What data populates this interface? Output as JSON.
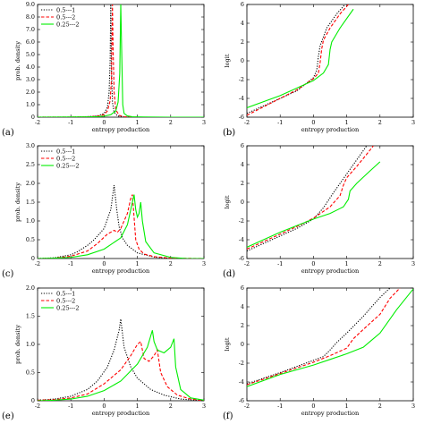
{
  "colors": {
    "black_series": "#000000",
    "red_series": "#ff0000",
    "green_series": "#00ee00"
  },
  "chart_data": [
    {
      "panel": "(a)",
      "type": "line",
      "xlabel": "entropy production",
      "ylabel": "prob. density",
      "xlim": [
        -2,
        3
      ],
      "ylim": [
        0,
        9.0
      ],
      "xticks": [
        "-2",
        "-1",
        "0",
        "1",
        "2",
        "3"
      ],
      "yticks": [
        "0",
        "1.0",
        "2.0",
        "3.0",
        "4.0",
        "5.0",
        "6.0",
        "7.0",
        "8.0",
        "9.0"
      ],
      "legend": true,
      "series": [
        {
          "name": "0.5---1",
          "style": "dotted",
          "x": [
            -2,
            -1,
            -0.5,
            -0.2,
            0,
            0.1,
            0.15,
            0.18,
            0.2,
            0.22,
            0.25,
            0.3,
            0.4,
            0.6,
            1,
            2,
            3
          ],
          "y": [
            0,
            0.01,
            0.04,
            0.1,
            0.3,
            0.8,
            2.0,
            4.5,
            9.0,
            4.0,
            1.2,
            0.4,
            0.1,
            0.02,
            0,
            0,
            0
          ]
        },
        {
          "name": "0.5---2",
          "style": "dashed",
          "x": [
            -2,
            -1,
            -0.5,
            -0.2,
            0,
            0.1,
            0.18,
            0.22,
            0.25,
            0.27,
            0.3,
            0.35,
            0.45,
            0.6,
            1,
            2,
            3
          ],
          "y": [
            0,
            0.01,
            0.03,
            0.08,
            0.2,
            0.5,
            1.3,
            3.0,
            9.0,
            5.5,
            2.0,
            0.6,
            0.15,
            0.03,
            0,
            0,
            0
          ]
        },
        {
          "name": "0.25---2",
          "style": "solid",
          "x": [
            -2,
            -1,
            -0.5,
            -0.2,
            0,
            0.2,
            0.35,
            0.42,
            0.47,
            0.5,
            0.53,
            0.56,
            0.6,
            0.7,
            0.85,
            1.2,
            2,
            3
          ],
          "y": [
            0,
            0.01,
            0.02,
            0.04,
            0.08,
            0.2,
            0.5,
            1.2,
            3.5,
            9.0,
            5.0,
            1.0,
            0.3,
            0.1,
            0.03,
            0.01,
            0,
            0
          ]
        }
      ]
    },
    {
      "panel": "(b)",
      "type": "line",
      "xlabel": "entropy production",
      "ylabel": "logit",
      "xlim": [
        -2,
        3
      ],
      "ylim": [
        -6,
        6
      ],
      "xticks": [
        "-2",
        "-1",
        "0",
        "1",
        "2",
        "3"
      ],
      "yticks": [
        "-6",
        "-4",
        "-2",
        "0",
        "2",
        "4",
        "6"
      ],
      "legend": false,
      "series": [
        {
          "name": "0.5---1",
          "style": "dotted",
          "x": [
            -2,
            -1,
            -0.5,
            0,
            0.1,
            0.15,
            0.2,
            0.4,
            0.7,
            0.95
          ],
          "y": [
            -5.6,
            -4.0,
            -3.2,
            -1.8,
            -1.0,
            0.5,
            1.6,
            3.5,
            5.0,
            6.0
          ]
        },
        {
          "name": "0.5---2",
          "style": "dashed",
          "x": [
            -2,
            -1,
            -0.5,
            0,
            0.15,
            0.2,
            0.25,
            0.3,
            0.5,
            0.8,
            1.05
          ],
          "y": [
            -5.8,
            -4.0,
            -3.1,
            -1.9,
            -1.3,
            -0.2,
            1.3,
            2.2,
            3.5,
            5.0,
            6.0
          ]
        },
        {
          "name": "0.25---2",
          "style": "solid",
          "x": [
            -2,
            -1,
            -0.5,
            0,
            0.3,
            0.45,
            0.5,
            0.55,
            0.8,
            1.2
          ],
          "y": [
            -5.0,
            -3.7,
            -2.9,
            -2.1,
            -1.3,
            -0.4,
            1.2,
            2.0,
            3.5,
            5.5
          ]
        }
      ]
    },
    {
      "panel": "(c)",
      "type": "line",
      "xlabel": "entropy production",
      "ylabel": "prob. density",
      "xlim": [
        -2,
        3
      ],
      "ylim": [
        0,
        3.0
      ],
      "xticks": [
        "-2",
        "-1",
        "0",
        "1",
        "2",
        "3"
      ],
      "yticks": [
        "0",
        "0.5",
        "1.0",
        "1.5",
        "2.0",
        "2.5",
        "3.0"
      ],
      "legend": true,
      "series": [
        {
          "name": "0.5---1",
          "style": "dotted",
          "x": [
            -2,
            -1.5,
            -1,
            -0.8,
            -0.5,
            -0.3,
            0,
            0.2,
            0.3,
            0.38,
            0.45,
            0.55,
            0.7,
            1,
            1.5,
            2,
            3
          ],
          "y": [
            0,
            0.02,
            0.1,
            0.18,
            0.35,
            0.5,
            0.8,
            1.3,
            1.95,
            1.3,
            0.85,
            0.55,
            0.35,
            0.15,
            0.04,
            0,
            0
          ]
        },
        {
          "name": "0.5---2",
          "style": "dashed",
          "x": [
            -2,
            -1.5,
            -1,
            -0.5,
            -0.2,
            0.1,
            0.3,
            0.4,
            0.5,
            0.7,
            0.8,
            0.85,
            0.9,
            0.95,
            1.05,
            1.2,
            1.5,
            2,
            3
          ],
          "y": [
            0,
            0.01,
            0.06,
            0.2,
            0.4,
            0.65,
            0.75,
            0.7,
            0.8,
            1.2,
            1.6,
            1.7,
            1.1,
            0.5,
            0.25,
            0.12,
            0.05,
            0.01,
            0
          ]
        },
        {
          "name": "0.25---2",
          "style": "solid",
          "x": [
            -2,
            -1.5,
            -1,
            -0.5,
            0,
            0.5,
            0.7,
            0.85,
            0.9,
            0.95,
            1.0,
            1.05,
            1.1,
            1.15,
            1.25,
            1.5,
            2,
            2.5,
            3
          ],
          "y": [
            0,
            0.01,
            0.03,
            0.1,
            0.25,
            0.55,
            0.9,
            1.5,
            1.7,
            1.3,
            1.1,
            1.2,
            1.5,
            1.0,
            0.45,
            0.15,
            0.03,
            0,
            0
          ]
        }
      ]
    },
    {
      "panel": "(d)",
      "type": "line",
      "xlabel": "entropy production",
      "ylabel": "logit",
      "xlim": [
        -2,
        3
      ],
      "ylim": [
        -6,
        6
      ],
      "xticks": [
        "-2",
        "-1",
        "0",
        "1",
        "2",
        "3"
      ],
      "yticks": [
        "-6",
        "-4",
        "-2",
        "0",
        "2",
        "4",
        "6"
      ],
      "legend": false,
      "series": [
        {
          "name": "0.5---1",
          "style": "dotted",
          "x": [
            -2,
            -1,
            -0.5,
            0,
            0.3,
            0.6,
            1,
            1.4,
            1.6
          ],
          "y": [
            -5.2,
            -3.6,
            -2.8,
            -1.8,
            -0.6,
            1.0,
            3.0,
            5.0,
            6.0
          ]
        },
        {
          "name": "0.5---2",
          "style": "dashed",
          "x": [
            -2,
            -1,
            -0.5,
            0,
            0.5,
            0.8,
            0.9,
            1.0,
            1.3,
            1.6,
            1.8
          ],
          "y": [
            -5.0,
            -3.4,
            -2.6,
            -1.7,
            -0.5,
            0.7,
            1.8,
            2.6,
            3.8,
            5.1,
            6.0
          ]
        },
        {
          "name": "0.25---2",
          "style": "solid",
          "x": [
            -2,
            -1,
            -0.5,
            0,
            0.5,
            0.9,
            1.05,
            1.1,
            1.3,
            1.6,
            2.0
          ],
          "y": [
            -4.8,
            -3.2,
            -2.5,
            -1.8,
            -1.2,
            -0.5,
            0.3,
            1.2,
            2.0,
            3.0,
            4.3
          ]
        }
      ]
    },
    {
      "panel": "(e)",
      "type": "line",
      "xlabel": "entropy production",
      "ylabel": "prob. density",
      "xlim": [
        -2,
        3
      ],
      "ylim": [
        0,
        2.0
      ],
      "xticks": [
        "-2",
        "-1",
        "0",
        "1",
        "2",
        "3"
      ],
      "yticks": [
        "0",
        "0.5",
        "1.0",
        "1.5",
        "2.0"
      ],
      "legend": true,
      "series": [
        {
          "name": "0.5---1",
          "style": "dotted",
          "x": [
            -2,
            -1.5,
            -1,
            -0.5,
            -0.2,
            0.1,
            0.3,
            0.45,
            0.5,
            0.6,
            0.8,
            1.0,
            1.4,
            1.8,
            2.3,
            3
          ],
          "y": [
            0.01,
            0.03,
            0.08,
            0.2,
            0.35,
            0.6,
            0.9,
            1.25,
            1.45,
            0.95,
            0.6,
            0.4,
            0.2,
            0.1,
            0.03,
            0
          ]
        },
        {
          "name": "0.5---2",
          "style": "dashed",
          "x": [
            -2,
            -1.5,
            -1,
            -0.5,
            0,
            0.5,
            0.8,
            1.0,
            1.1,
            1.2,
            1.35,
            1.5,
            1.6,
            1.7,
            1.9,
            2.2,
            2.6,
            3
          ],
          "y": [
            0.01,
            0.02,
            0.05,
            0.12,
            0.3,
            0.55,
            0.8,
            1.0,
            1.05,
            0.75,
            0.7,
            0.8,
            0.9,
            0.5,
            0.25,
            0.1,
            0.03,
            0
          ]
        },
        {
          "name": "0.25---2",
          "style": "solid",
          "x": [
            -2,
            -1.5,
            -1,
            -0.5,
            0,
            0.5,
            1.0,
            1.3,
            1.45,
            1.5,
            1.6,
            1.8,
            2.0,
            2.1,
            2.15,
            2.3,
            2.6,
            3
          ],
          "y": [
            0,
            0.01,
            0.03,
            0.08,
            0.18,
            0.35,
            0.65,
            0.95,
            1.25,
            1.05,
            0.9,
            0.85,
            0.95,
            1.1,
            0.6,
            0.2,
            0.05,
            0.01
          ]
        }
      ]
    },
    {
      "panel": "(f)",
      "type": "line",
      "xlabel": "entropy production",
      "ylabel": "logit",
      "xlim": [
        -2,
        3
      ],
      "ylim": [
        -6,
        6
      ],
      "xticks": [
        "-2",
        "-1",
        "0",
        "1",
        "2",
        "3"
      ],
      "yticks": [
        "-6",
        "-4",
        "-2",
        "0",
        "2",
        "4",
        "6"
      ],
      "legend": false,
      "series": [
        {
          "name": "0.5---1",
          "style": "dotted",
          "x": [
            -2,
            -1,
            0,
            0.3,
            0.5,
            0.7,
            1.0,
            1.5,
            2.0,
            2.3
          ],
          "y": [
            -4.2,
            -3.0,
            -1.7,
            -1.3,
            -0.6,
            0.2,
            1.2,
            3.0,
            5.0,
            6.0
          ]
        },
        {
          "name": "0.5---2",
          "style": "dashed",
          "x": [
            -2,
            -1,
            0,
            0.5,
            1.0,
            1.2,
            1.5,
            2.0,
            2.3,
            2.6
          ],
          "y": [
            -4.3,
            -3.1,
            -1.9,
            -1.2,
            -0.4,
            0.6,
            1.6,
            3.2,
            4.9,
            6.0
          ]
        },
        {
          "name": "0.25---2",
          "style": "solid",
          "x": [
            -2,
            -1,
            0,
            0.5,
            1.0,
            1.5,
            1.7,
            2.0,
            2.2,
            2.5,
            3.0
          ],
          "y": [
            -4.5,
            -3.2,
            -2.2,
            -1.6,
            -1.0,
            -0.3,
            0.3,
            1.2,
            2.2,
            3.7,
            5.9
          ]
        }
      ]
    }
  ]
}
